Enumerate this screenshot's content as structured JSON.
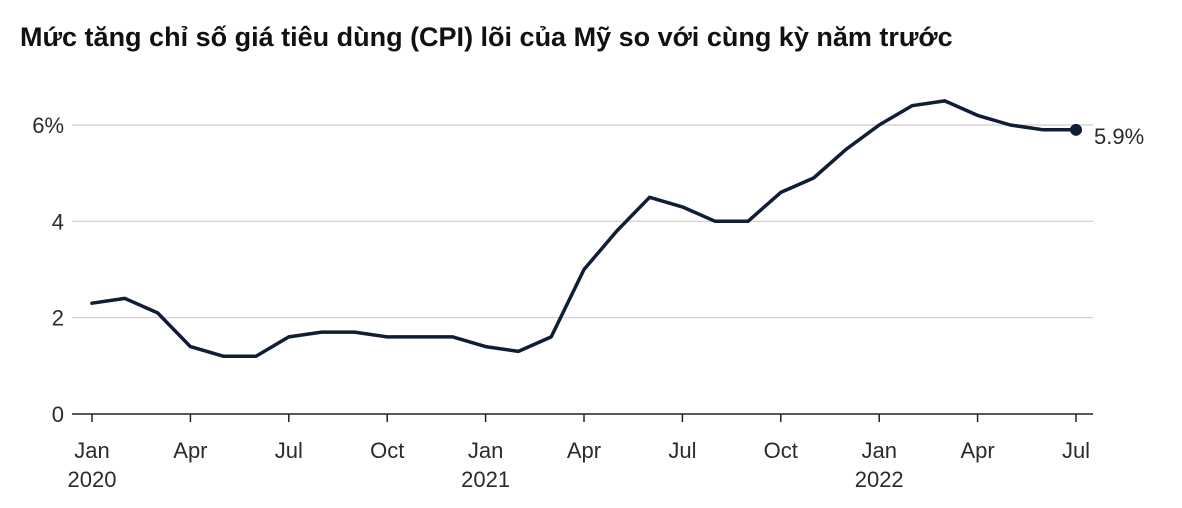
{
  "chart_data": {
    "type": "line",
    "title": "Mức tăng chỉ số giá tiêu dùng (CPI) lõi của Mỹ so với cùng kỳ năm trước",
    "xlabel": "",
    "ylabel": "",
    "x": [
      "2020-01",
      "2020-02",
      "2020-03",
      "2020-04",
      "2020-05",
      "2020-06",
      "2020-07",
      "2020-08",
      "2020-09",
      "2020-10",
      "2020-11",
      "2020-12",
      "2021-01",
      "2021-02",
      "2021-03",
      "2021-04",
      "2021-05",
      "2021-06",
      "2021-07",
      "2021-08",
      "2021-09",
      "2021-10",
      "2021-11",
      "2021-12",
      "2022-01",
      "2022-02",
      "2022-03",
      "2022-04",
      "2022-05",
      "2022-06",
      "2022-07"
    ],
    "series": [
      {
        "values": [
          2.3,
          2.4,
          2.1,
          1.4,
          1.2,
          1.2,
          1.6,
          1.7,
          1.7,
          1.6,
          1.6,
          1.6,
          1.4,
          1.3,
          1.6,
          3.0,
          3.8,
          4.5,
          4.3,
          4.0,
          4.0,
          4.6,
          4.9,
          5.5,
          6.0,
          6.4,
          6.5,
          6.2,
          6.0,
          5.9,
          5.9
        ],
        "color": "#0f1d35"
      }
    ],
    "ylim": [
      0,
      6.8
    ],
    "y_ticks": [
      0,
      2,
      4,
      6
    ],
    "y_tick_labels": [
      "0",
      "2",
      "4",
      "6%"
    ],
    "x_ticks": [
      {
        "x": "2020-01",
        "label": "Jan",
        "year": "2020"
      },
      {
        "x": "2020-04",
        "label": "Apr",
        "year": ""
      },
      {
        "x": "2020-07",
        "label": "Jul",
        "year": ""
      },
      {
        "x": "2020-10",
        "label": "Oct",
        "year": ""
      },
      {
        "x": "2021-01",
        "label": "Jan",
        "year": "2021"
      },
      {
        "x": "2021-04",
        "label": "Apr",
        "year": ""
      },
      {
        "x": "2021-07",
        "label": "Jul",
        "year": ""
      },
      {
        "x": "2021-10",
        "label": "Oct",
        "year": ""
      },
      {
        "x": "2022-01",
        "label": "Jan",
        "year": "2022"
      },
      {
        "x": "2022-04",
        "label": "Apr",
        "year": ""
      },
      {
        "x": "2022-07",
        "label": "Jul",
        "year": ""
      }
    ],
    "end_label": "5.9%",
    "grid": true,
    "legend": "none",
    "colors": {
      "line": "#0f1d35",
      "grid": "#cccccc",
      "axis": "#222222"
    }
  }
}
